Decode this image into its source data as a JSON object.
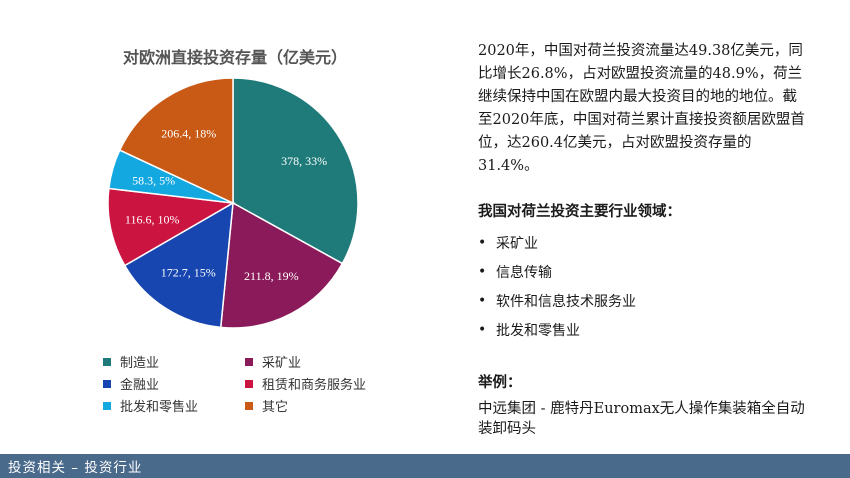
{
  "chart_data": {
    "type": "pie",
    "title": "对欧洲直接投资存量（亿美元）",
    "categories": [
      "制造业",
      "采矿业",
      "金融业",
      "租赁和商务服务业",
      "批发和零售业",
      "其它"
    ],
    "values": [
      378,
      211.8,
      172.7,
      116.6,
      58.3,
      206.4
    ],
    "percents": [
      "33%",
      "19%",
      "15%",
      "10%",
      "5%",
      "18%"
    ],
    "labels": [
      "378, 33%",
      "211.8, 19%",
      "172.7, 15%",
      "116.6, 10%",
      "58.3, 5%",
      "206.4, 18%"
    ],
    "colors": [
      "#1f7a7a",
      "#8b1a5a",
      "#1746b0",
      "#cc1440",
      "#14a8e0",
      "#c85a16"
    ],
    "legend_position": "bottom"
  },
  "intro_text": "2020年，中国对荷兰投资流量达49.38亿美元，同比增长26.8%，占对欧盟投资流量的48.9%，荷兰继续保持中国在欧盟内最大投资目的地的地位。截至2020年底，中国对荷兰累计直接投资额居欧盟首位，达260.4亿美元，占对欧盟投资存量的31.4%。",
  "industries": {
    "heading": "我国对荷兰投资主要行业领域：",
    "bullet": "•",
    "items": [
      "采矿业",
      "信息传输",
      "软件和信息技术服务业",
      "批发和零售业"
    ]
  },
  "example": {
    "heading": "举例：",
    "text": "中远集团 - 鹿特丹Euromax无人操作集装箱全自动装卸码头"
  },
  "footer": {
    "label": "投资相关 – 投资行业"
  }
}
